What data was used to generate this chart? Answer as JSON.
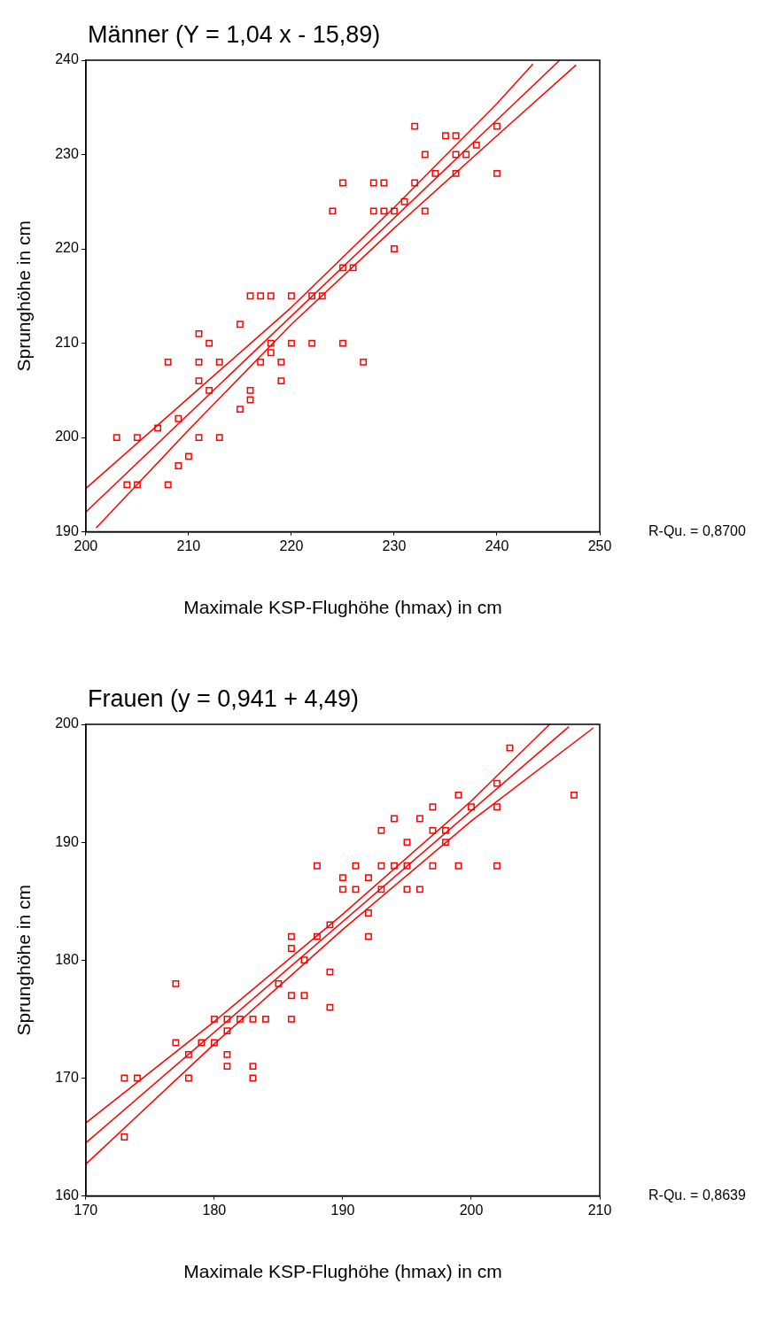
{
  "chart_data": [
    {
      "type": "scatter",
      "title": "Männer (Y = 1,04 x - 15,89)",
      "xlabel": "Maximale KSP-Flughöhe (hmax) in cm",
      "ylabel": "Sprunghöhe in cm",
      "annotations": [
        "R-Qu. = 0,8700"
      ],
      "xlim": [
        200,
        250
      ],
      "ylim": [
        190,
        240
      ],
      "xticks": [
        200,
        210,
        220,
        230,
        240,
        250
      ],
      "yticks": [
        190,
        200,
        210,
        220,
        230,
        240
      ],
      "legend": false,
      "grid": false,
      "series": [
        {
          "color": "#ff0000",
          "marker": "square",
          "x": [
            203,
            205,
            204,
            205,
            208,
            207,
            209,
            209,
            210,
            211,
            213,
            208,
            211,
            212,
            211,
            213,
            211,
            212,
            215,
            215,
            216,
            216,
            216,
            217,
            218,
            220,
            222,
            223,
            217,
            218,
            218,
            219,
            219,
            220,
            222,
            225,
            227,
            225,
            226,
            224,
            225,
            228,
            229,
            232,
            228,
            229,
            230,
            233,
            231,
            230,
            234,
            236,
            240,
            233,
            236,
            237,
            238,
            235,
            236,
            232,
            240
          ],
          "values": [
            200,
            200,
            195,
            195,
            195,
            201,
            202,
            197,
            198,
            200,
            200,
            208,
            211,
            210,
            208,
            208,
            206,
            205,
            212,
            203,
            204,
            205,
            215,
            215,
            215,
            215,
            215,
            215,
            208,
            210,
            209,
            208,
            206,
            210,
            210,
            210,
            208,
            218,
            218,
            224,
            227,
            227,
            227,
            227,
            224,
            224,
            224,
            224,
            225,
            220,
            228,
            228,
            228,
            230,
            230,
            230,
            231,
            232,
            232,
            233,
            233
          ]
        },
        {
          "type": "line",
          "marker": "none",
          "color": "#ff0000",
          "x": [
            200,
            246.1
          ],
          "values": [
            192.1,
            240
          ]
        },
        {
          "type": "line",
          "marker": "none",
          "color": "#ff0000",
          "x": [
            200,
            210,
            220,
            230,
            240,
            243.5
          ],
          "values": [
            194.6,
            204.2,
            213.8,
            224.4,
            235.4,
            239.6
          ]
        },
        {
          "type": "line",
          "marker": "none",
          "color": "#ff0000",
          "x": [
            201,
            210,
            220,
            230,
            240,
            247.7
          ],
          "values": [
            190.4,
            200.8,
            212.0,
            222.2,
            232.0,
            239.5
          ]
        }
      ]
    },
    {
      "type": "scatter",
      "title": "Frauen (y = 0,941 + 4,49)",
      "xlabel": "Maximale KSP-Flughöhe (hmax) in cm",
      "ylabel": "Sprunghöhe in cm",
      "annotations": [
        "R-Qu. = 0,8639"
      ],
      "xlim": [
        170,
        210
      ],
      "ylim": [
        160,
        200
      ],
      "xticks": [
        170,
        180,
        190,
        200,
        210
      ],
      "yticks": [
        160,
        170,
        180,
        190,
        200
      ],
      "legend": false,
      "grid": false,
      "series": [
        {
          "color": "#ff0000",
          "marker": "square",
          "x": [
            173,
            174,
            173,
            177,
            177,
            178,
            178,
            179,
            180,
            180,
            181,
            181,
            181,
            181,
            182,
            183,
            184,
            183,
            183,
            185,
            186,
            186,
            186,
            186,
            187,
            187,
            188,
            188,
            189,
            189,
            189,
            190,
            190,
            191,
            191,
            192,
            192,
            192,
            193,
            193,
            193,
            194,
            194,
            195,
            195,
            195,
            196,
            196,
            197,
            197,
            197,
            198,
            198,
            199,
            199,
            200,
            202,
            202,
            202,
            203,
            208
          ],
          "values": [
            170,
            170,
            165,
            178,
            173,
            172,
            170,
            173,
            173,
            175,
            175,
            174,
            172,
            171,
            175,
            175,
            175,
            171,
            170,
            178,
            182,
            181,
            177,
            175,
            177,
            180,
            182,
            188,
            183,
            179,
            176,
            187,
            186,
            186,
            188,
            187,
            184,
            182,
            191,
            188,
            186,
            192,
            188,
            190,
            188,
            186,
            192,
            186,
            193,
            191,
            188,
            191,
            190,
            194,
            188,
            193,
            195,
            193,
            188,
            198,
            194
          ]
        },
        {
          "type": "line",
          "marker": "none",
          "color": "#ff0000",
          "x": [
            170,
            207.6
          ],
          "values": [
            164.5,
            199.8
          ]
        },
        {
          "type": "line",
          "marker": "none",
          "color": "#ff0000",
          "x": [
            170,
            180,
            190,
            200,
            206.1
          ],
          "values": [
            166.2,
            174.8,
            183.9,
            193.5,
            200
          ]
        },
        {
          "type": "line",
          "marker": "none",
          "color": "#ff0000",
          "x": [
            170,
            180,
            190,
            200,
            209.5
          ],
          "values": [
            162.7,
            172.9,
            182.6,
            191.8,
            199.7
          ]
        }
      ]
    }
  ]
}
